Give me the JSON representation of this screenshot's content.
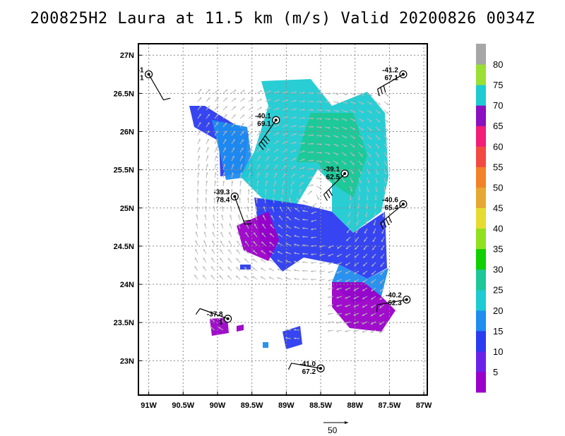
{
  "title": "200825H2 Laura at 11.5 km (m/s) Valid 20200826 0034Z",
  "map": {
    "lon_range": [
      -91.15,
      -86.95
    ],
    "lat_range": [
      22.55,
      27.15
    ],
    "x_ticks": [
      {
        "lon": -91.0,
        "label": "91W"
      },
      {
        "lon": -90.5,
        "label": "90.5W"
      },
      {
        "lon": -90.0,
        "label": "90W"
      },
      {
        "lon": -89.5,
        "label": "89.5W"
      },
      {
        "lon": -89.0,
        "label": "89W"
      },
      {
        "lon": -88.5,
        "label": "88.5W"
      },
      {
        "lon": -88.0,
        "label": "88W"
      },
      {
        "lon": -87.5,
        "label": "87.5W"
      },
      {
        "lon": -87.0,
        "label": "87W"
      }
    ],
    "y_ticks": [
      {
        "lat": 27.0,
        "label": "27N"
      },
      {
        "lat": 26.5,
        "label": "26.5N"
      },
      {
        "lat": 26.0,
        "label": "26N"
      },
      {
        "lat": 25.5,
        "label": "25.5N"
      },
      {
        "lat": 25.0,
        "label": "25N"
      },
      {
        "lat": 24.5,
        "label": "24.5N"
      },
      {
        "lat": 24.0,
        "label": "24N"
      },
      {
        "lat": 23.5,
        "label": "23.5N"
      },
      {
        "lat": 23.0,
        "label": "23N"
      }
    ],
    "grid": "dotted"
  },
  "colorbar": {
    "colors": [
      "#9b00c8",
      "#6a22e8",
      "#2b3bf0",
      "#1e8cf0",
      "#1ecbd2",
      "#1ec896",
      "#10d000",
      "#90e020",
      "#e6dc31",
      "#e6a831",
      "#f28228",
      "#f24a42",
      "#f21e78",
      "#8a10c0",
      "#1ecbd2",
      "#9ae032",
      "#a6a6a6"
    ],
    "labels": [
      "5",
      "10",
      "15",
      "20",
      "25",
      "30",
      "35",
      "40",
      "45",
      "50",
      "55",
      "60",
      "65",
      "70",
      "75",
      "80"
    ]
  },
  "observations": [
    {
      "lon": -91.0,
      "lat": 26.75,
      "temp": "-1",
      "val": "1",
      "barb_dir": 60,
      "barbs": 1
    },
    {
      "lon": -87.3,
      "lat": 26.75,
      "temp": "-41.2",
      "val": "67.1",
      "barb_dir": 150,
      "barbs": 3
    },
    {
      "lon": -89.15,
      "lat": 26.15,
      "temp": "-40.1",
      "val": "69.1",
      "barb_dir": 125,
      "barbs": 4
    },
    {
      "lon": -88.15,
      "lat": 25.45,
      "temp": "-39.1",
      "val": "62.5",
      "barb_dir": 135,
      "barbs": 3
    },
    {
      "lon": -89.75,
      "lat": 25.15,
      "temp": "-39.3",
      "val": "78.4",
      "barb_dir": 70,
      "barbs": 2
    },
    {
      "lon": -87.3,
      "lat": 25.05,
      "temp": "-40.6",
      "val": "65.4",
      "barb_dir": 140,
      "barbs": 4
    },
    {
      "lon": -87.25,
      "lat": 23.8,
      "temp": "-40.2",
      "val": "62.3",
      "barb_dir": 170,
      "barbs": 1
    },
    {
      "lon": -89.85,
      "lat": 23.55,
      "temp": "-37.8",
      "val": "1",
      "barb_dir": 200,
      "barbs": 1
    },
    {
      "lon": -88.5,
      "lat": 22.9,
      "temp": "-41.0",
      "val": "67.2",
      "barb_dir": 190,
      "barbs": 1
    }
  ],
  "reference_vector": {
    "label": "50"
  }
}
